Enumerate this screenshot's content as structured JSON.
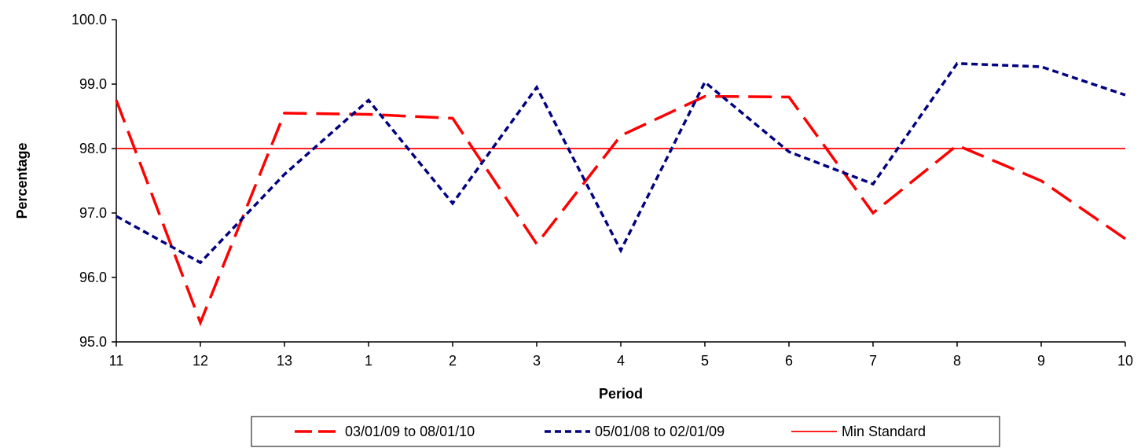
{
  "chart_data": {
    "type": "line",
    "title": "",
    "xlabel": "Period",
    "ylabel": "Percentage",
    "categories": [
      "11",
      "12",
      "13",
      "1",
      "2",
      "3",
      "4",
      "5",
      "6",
      "7",
      "8",
      "9",
      "10"
    ],
    "ylim": [
      95.0,
      100.0
    ],
    "yticks": [
      "95.0",
      "96.0",
      "97.0",
      "98.0",
      "99.0",
      "100.0"
    ],
    "grid": false,
    "legend_position": "bottom",
    "series": [
      {
        "name": "03/01/09 to 08/01/10",
        "color": "#ff0000",
        "style": "long-dash",
        "values": [
          98.75,
          95.3,
          98.55,
          98.53,
          98.47,
          96.52,
          98.2,
          98.81,
          98.8,
          97.0,
          98.05,
          97.5,
          96.6
        ]
      },
      {
        "name": "05/01/08 to 02/01/09",
        "color": "#000080",
        "style": "short-dash",
        "values": [
          96.95,
          96.23,
          97.6,
          98.75,
          97.15,
          98.95,
          96.42,
          99.03,
          97.95,
          97.45,
          99.32,
          99.27,
          98.83
        ]
      },
      {
        "name": "Min Standard",
        "color": "#ff0000",
        "style": "solid",
        "values": [
          98.0,
          98.0,
          98.0,
          98.0,
          98.0,
          98.0,
          98.0,
          98.0,
          98.0,
          98.0,
          98.0,
          98.0,
          98.0
        ]
      }
    ]
  }
}
